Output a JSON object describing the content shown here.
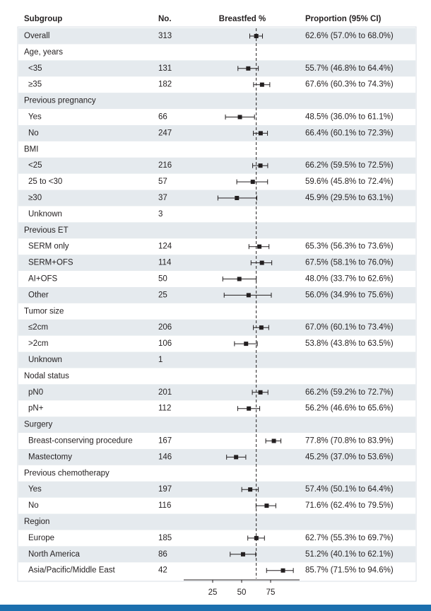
{
  "chart_data": {
    "type": "forest",
    "columns": [
      "Subgroup",
      "No.",
      "Breastfed %",
      "Proportion (95% CI)"
    ],
    "xlim": [
      0,
      100
    ],
    "xticks": [
      25,
      50,
      75
    ],
    "overall": {
      "label": "Overall",
      "n": 313,
      "value": 62.6,
      "lower": 57.0,
      "upper": 68.0,
      "value_label": "62.6% (57.0% to 68.0%)"
    },
    "groups": [
      {
        "label": "Age, years",
        "rows": [
          {
            "label": "<35",
            "n": 131,
            "value": 55.7,
            "lower": 46.8,
            "upper": 64.4,
            "value_label": "55.7% (46.8% to 64.4%)"
          },
          {
            "label": "≥35",
            "n": 182,
            "value": 67.6,
            "lower": 60.3,
            "upper": 74.3,
            "value_label": "67.6% (60.3% to 74.3%)"
          }
        ]
      },
      {
        "label": "Previous pregnancy",
        "rows": [
          {
            "label": "Yes",
            "n": 66,
            "value": 48.5,
            "lower": 36.0,
            "upper": 61.1,
            "value_label": "48.5% (36.0% to 61.1%)"
          },
          {
            "label": "No",
            "n": 247,
            "value": 66.4,
            "lower": 60.1,
            "upper": 72.3,
            "value_label": "66.4% (60.1% to 72.3%)"
          }
        ]
      },
      {
        "label": "BMI",
        "rows": [
          {
            "label": "<25",
            "n": 216,
            "value": 66.2,
            "lower": 59.5,
            "upper": 72.5,
            "value_label": "66.2% (59.5% to 72.5%)"
          },
          {
            "label": "25 to <30",
            "n": 57,
            "value": 59.6,
            "lower": 45.8,
            "upper": 72.4,
            "value_label": "59.6% (45.8% to 72.4%)"
          },
          {
            "label": "≥30",
            "n": 37,
            "value": 45.9,
            "lower": 29.5,
            "upper": 63.1,
            "value_label": "45.9% (29.5% to 63.1%)"
          },
          {
            "label": "Unknown",
            "n": 3
          }
        ]
      },
      {
        "label": "Previous ET",
        "rows": [
          {
            "label": "SERM only",
            "n": 124,
            "value": 65.3,
            "lower": 56.3,
            "upper": 73.6,
            "value_label": "65.3% (56.3% to 73.6%)"
          },
          {
            "label": "SERM+OFS",
            "n": 114,
            "value": 67.5,
            "lower": 58.1,
            "upper": 76.0,
            "value_label": "67.5% (58.1% to 76.0%)"
          },
          {
            "label": "AI+OFS",
            "n": 50,
            "value": 48.0,
            "lower": 33.7,
            "upper": 62.6,
            "value_label": "48.0% (33.7% to 62.6%)"
          },
          {
            "label": "Other",
            "n": 25,
            "value": 56.0,
            "lower": 34.9,
            "upper": 75.6,
            "value_label": "56.0% (34.9% to 75.6%)"
          }
        ]
      },
      {
        "label": "Tumor size",
        "rows": [
          {
            "label": "≤2cm",
            "n": 206,
            "value": 67.0,
            "lower": 60.1,
            "upper": 73.4,
            "value_label": "67.0% (60.1% to 73.4%)"
          },
          {
            "label": ">2cm",
            "n": 106,
            "value": 53.8,
            "lower": 43.8,
            "upper": 63.5,
            "value_label": "53.8% (43.8% to 63.5%)"
          },
          {
            "label": "Unknown",
            "n": 1
          }
        ]
      },
      {
        "label": "Nodal status",
        "rows": [
          {
            "label": "pN0",
            "n": 201,
            "value": 66.2,
            "lower": 59.2,
            "upper": 72.7,
            "value_label": "66.2% (59.2% to 72.7%)"
          },
          {
            "label": "pN+",
            "n": 112,
            "value": 56.2,
            "lower": 46.6,
            "upper": 65.6,
            "value_label": "56.2% (46.6% to 65.6%)"
          }
        ]
      },
      {
        "label": "Surgery",
        "rows": [
          {
            "label": "Breast-conserving procedure",
            "n": 167,
            "value": 77.8,
            "lower": 70.8,
            "upper": 83.9,
            "value_label": "77.8% (70.8% to 83.9%)"
          },
          {
            "label": "Mastectomy",
            "n": 146,
            "value": 45.2,
            "lower": 37.0,
            "upper": 53.6,
            "value_label": "45.2% (37.0% to 53.6%)"
          }
        ]
      },
      {
        "label": "Previous chemotherapy",
        "rows": [
          {
            "label": "Yes",
            "n": 197,
            "value": 57.4,
            "lower": 50.1,
            "upper": 64.4,
            "value_label": "57.4% (50.1% to 64.4%)"
          },
          {
            "label": "No",
            "n": 116,
            "value": 71.6,
            "lower": 62.4,
            "upper": 79.5,
            "value_label": "71.6% (62.4% to 79.5%)"
          }
        ]
      },
      {
        "label": "Region",
        "rows": [
          {
            "label": "Europe",
            "n": 185,
            "value": 62.7,
            "lower": 55.3,
            "upper": 69.7,
            "value_label": "62.7% (55.3% to 69.7%)"
          },
          {
            "label": "North America",
            "n": 86,
            "value": 51.2,
            "lower": 40.1,
            "upper": 62.1,
            "value_label": "51.2% (40.1% to 62.1%)"
          },
          {
            "label": "Asia/Pacific/Middle East",
            "n": 42,
            "value": 85.7,
            "lower": 71.5,
            "upper": 94.6,
            "value_label": "85.7% (71.5% to 94.6%)"
          }
        ]
      }
    ]
  }
}
